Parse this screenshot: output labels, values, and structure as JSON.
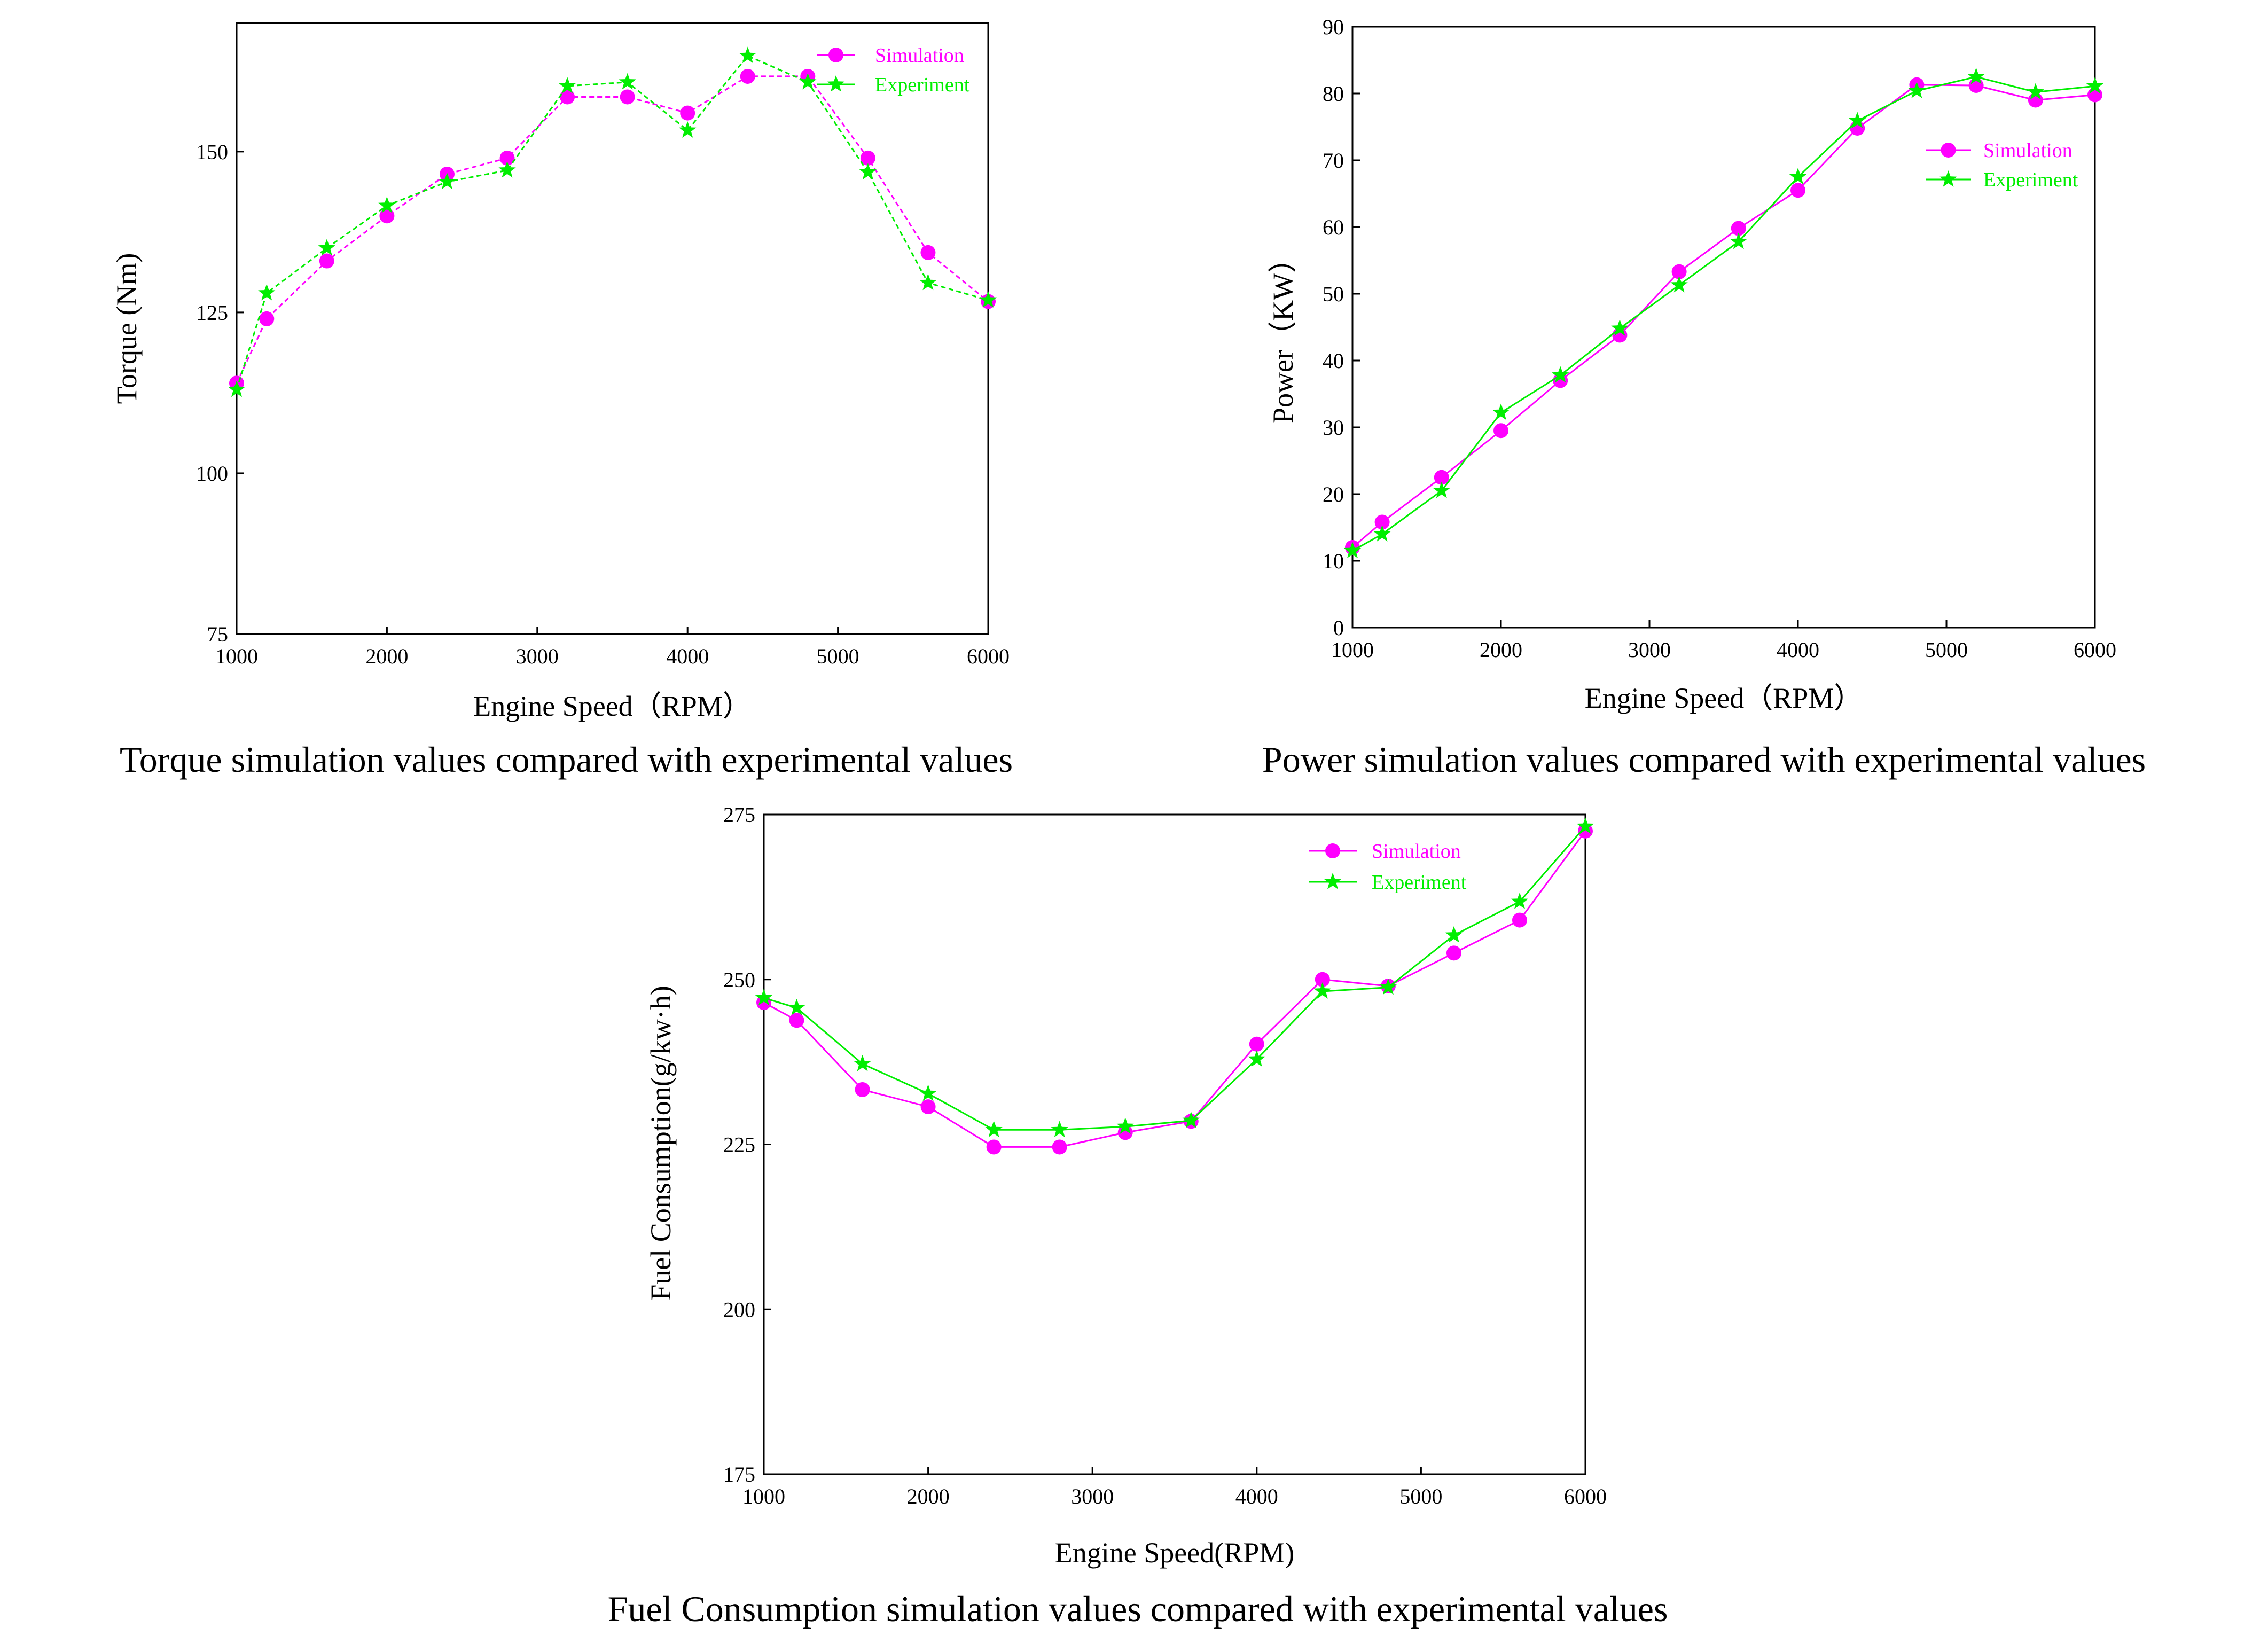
{
  "colors": {
    "simulation": "#ff00ff",
    "experiment": "#00ee00",
    "axis": "#000000",
    "background": "#ffffff"
  },
  "chart_data": [
    {
      "id": "torque",
      "type": "line",
      "xlabel": "Engine Speed（RPM）",
      "ylabel": "Torque (Nm)",
      "caption": "Torque simulation values compared with experimental values",
      "xlim": [
        1000,
        6000
      ],
      "ylim": [
        75,
        170
      ],
      "xticks": [
        1000,
        2000,
        3000,
        4000,
        5000,
        6000
      ],
      "yticks": [
        75,
        100,
        125,
        150
      ],
      "legend_position": "top-right",
      "x": [
        1000,
        1200,
        1600,
        2000,
        2400,
        2800,
        3200,
        3600,
        4000,
        4400,
        4800,
        5200,
        5600,
        6000
      ],
      "series": [
        {
          "name": "Simulation",
          "marker": "circle",
          "values": [
            114,
            124,
            133,
            140,
            146.5,
            149,
            158.5,
            158.5,
            156,
            161.7,
            161.7,
            149,
            134.3,
            126.7
          ]
        },
        {
          "name": "Experiment",
          "marker": "star",
          "values": [
            113,
            128,
            135,
            141.6,
            145.3,
            147.1,
            160.2,
            160.8,
            153.3,
            164.9,
            160.8,
            146.8,
            129.6,
            126.9
          ]
        }
      ]
    },
    {
      "id": "power",
      "type": "line",
      "xlabel": "Engine Speed（RPM）",
      "ylabel": "Power（KW）",
      "caption": "Power simulation values compared with experimental values",
      "xlim": [
        1000,
        6000
      ],
      "ylim": [
        0,
        90
      ],
      "xticks": [
        1000,
        2000,
        3000,
        4000,
        5000,
        6000
      ],
      "yticks": [
        0,
        10,
        20,
        30,
        40,
        50,
        60,
        70,
        80,
        90
      ],
      "legend_position": "upper-right",
      "x": [
        1000,
        1200,
        1600,
        2000,
        2400,
        2800,
        3200,
        3600,
        4000,
        4400,
        4800,
        5200,
        5600,
        6000
      ],
      "series": [
        {
          "name": "Simulation",
          "marker": "circle",
          "values": [
            12,
            15.8,
            22.5,
            29.5,
            37,
            43.8,
            53.3,
            59.8,
            65.5,
            74.8,
            81.3,
            81.2,
            79,
            79.8
          ]
        },
        {
          "name": "Experiment",
          "marker": "star",
          "values": [
            11.5,
            14,
            20.5,
            32.2,
            37.8,
            44.8,
            51.3,
            57.8,
            67.5,
            75.9,
            80.4,
            82.5,
            80.2,
            81.1
          ]
        }
      ]
    },
    {
      "id": "fuel",
      "type": "line",
      "xlabel": "Engine Speed(RPM)",
      "ylabel": "Fuel Consumption(g/kw·h)",
      "caption": "Fuel Consumption simulation values compared with experimental values",
      "xlim": [
        1000,
        6000
      ],
      "ylim": [
        175,
        275
      ],
      "xticks": [
        1000,
        2000,
        3000,
        4000,
        5000,
        6000
      ],
      "yticks": [
        175,
        200,
        225,
        250,
        275
      ],
      "legend_position": "top-right",
      "x": [
        1000,
        1200,
        1600,
        2000,
        2400,
        2800,
        3200,
        3600,
        4000,
        4400,
        4800,
        5200,
        5600,
        6000
      ],
      "series": [
        {
          "name": "Simulation",
          "marker": "circle",
          "values": [
            246.5,
            243.8,
            233.3,
            230.7,
            224.6,
            224.6,
            226.8,
            228.5,
            240.2,
            250,
            249,
            254,
            259,
            272.5
          ]
        },
        {
          "name": "Experiment",
          "marker": "star",
          "values": [
            247.2,
            245.7,
            237.2,
            232.7,
            227.2,
            227.2,
            227.7,
            228.6,
            237.9,
            248.2,
            248.8,
            256.7,
            261.8,
            273.2
          ]
        }
      ]
    }
  ]
}
